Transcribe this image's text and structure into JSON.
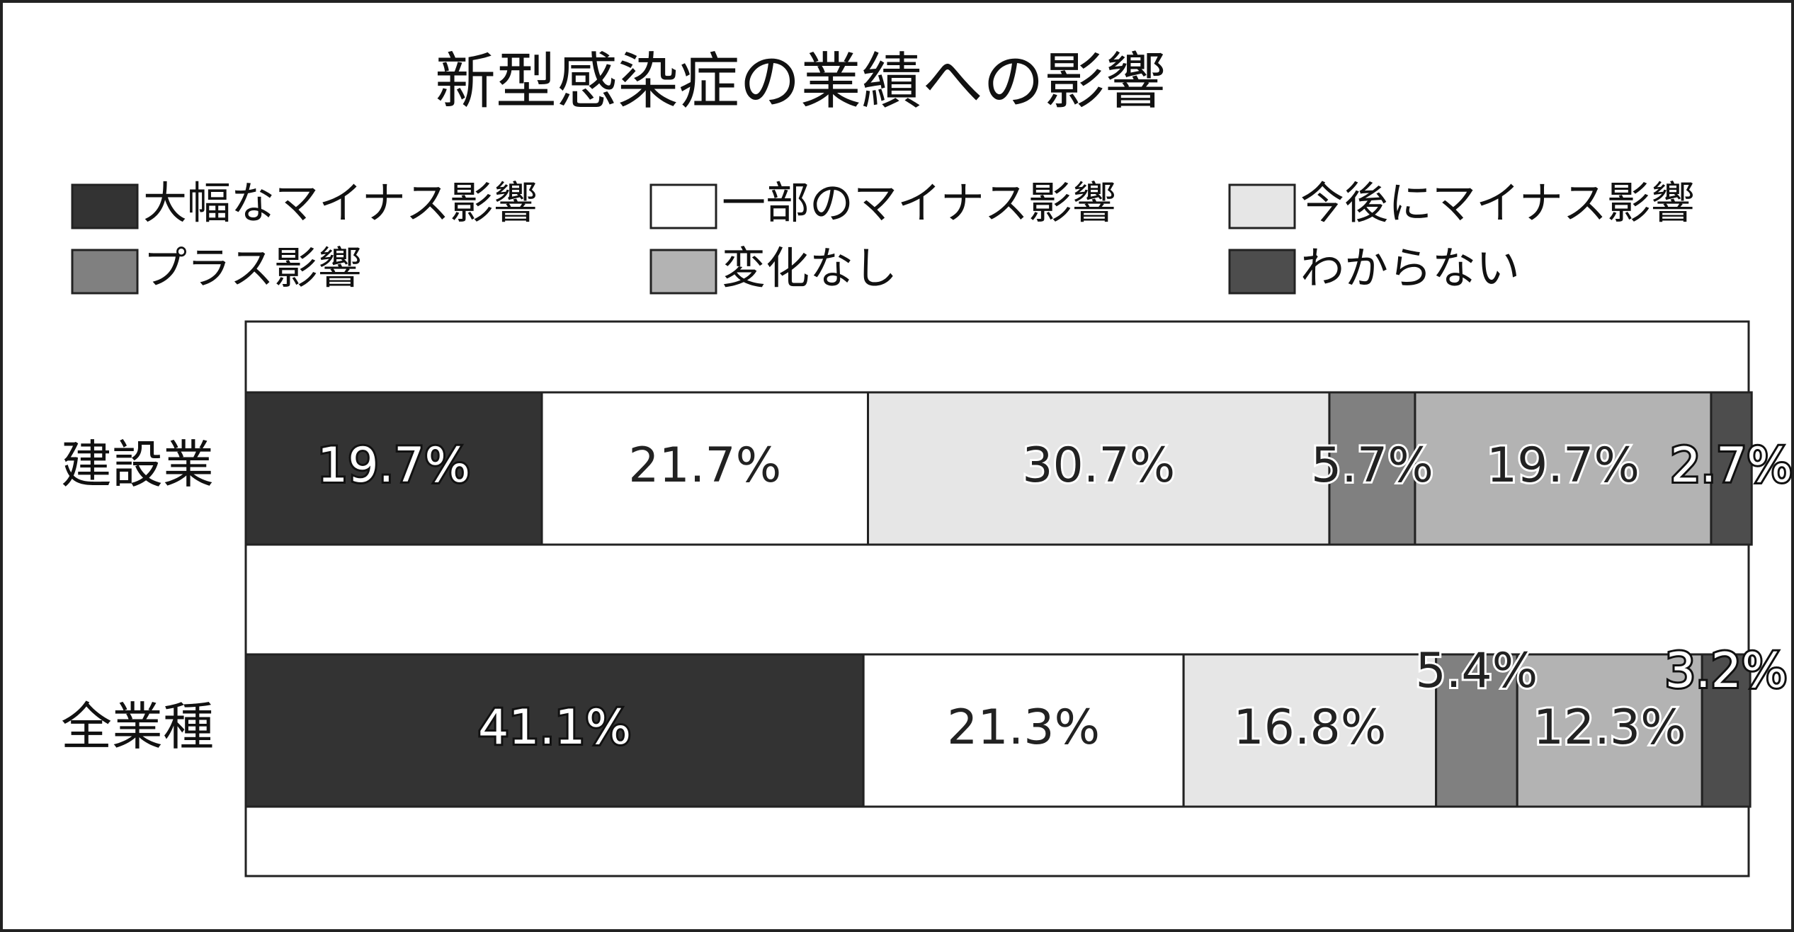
{
  "chart_data": {
    "type": "stacked_bar_horizontal",
    "title": "新型感染症の業績への影響",
    "categories": [
      "建設業",
      "全業種"
    ],
    "xlim": [
      0,
      100
    ],
    "series": [
      {
        "name": "大幅なマイナス影響",
        "color": "#333333",
        "values": [
          19.7,
          41.1
        ],
        "value_labels": [
          "19.7%",
          "41.1%"
        ]
      },
      {
        "name": "一部のマイナス影響",
        "color": "#ffffff",
        "values": [
          21.7,
          21.3
        ],
        "value_labels": [
          "21.7%",
          "21.3%"
        ]
      },
      {
        "name": "今後にマイナス影響",
        "color": "#e6e6e6",
        "values": [
          30.7,
          16.8
        ],
        "value_labels": [
          "30.7%",
          "16.8%"
        ]
      },
      {
        "name": "プラス影響",
        "color": "#808080",
        "values": [
          5.7,
          5.4
        ],
        "value_labels": [
          "5.7%",
          "5.4%"
        ]
      },
      {
        "name": "変化なし",
        "color": "#b3b3b3",
        "values": [
          19.7,
          12.3
        ],
        "value_labels": [
          "19.7%",
          "12.3%"
        ]
      },
      {
        "name": "わからない",
        "color": "#4d4d4d",
        "values": [
          2.7,
          3.2
        ],
        "value_labels": [
          "2.7%",
          "3.2%"
        ]
      }
    ]
  }
}
